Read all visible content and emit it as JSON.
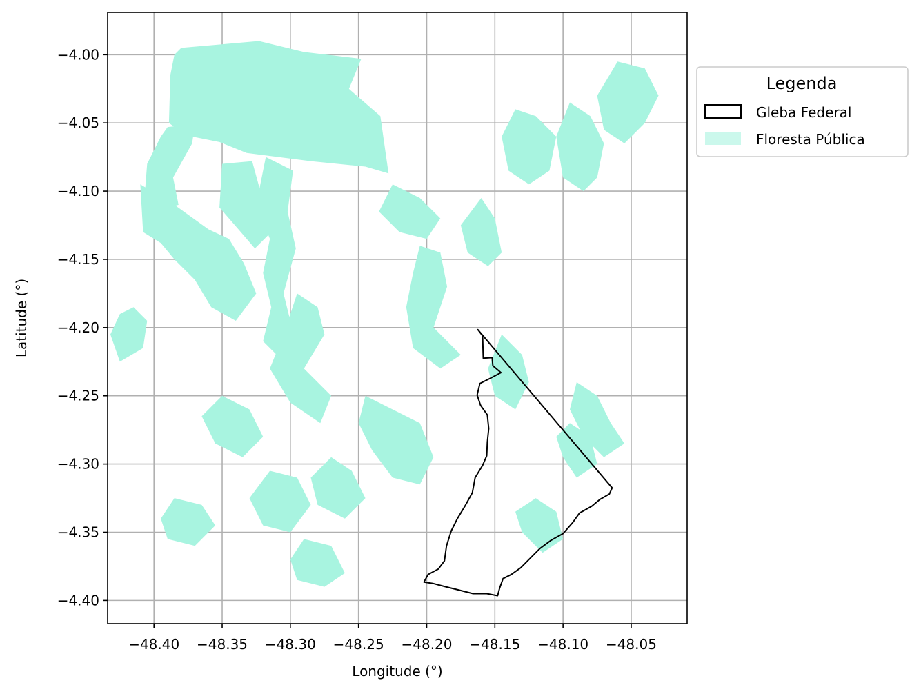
{
  "chart_data": {
    "type": "map",
    "xlabel": "Longitude (°)",
    "ylabel": "Latitude (°)",
    "xlim": [
      -48.434,
      -48.009
    ],
    "ylim": [
      -4.417,
      -3.969
    ],
    "xticks": [
      -48.4,
      -48.35,
      -48.3,
      -48.25,
      -48.2,
      -48.15,
      -48.1,
      -48.05
    ],
    "yticks": [
      -4.0,
      -4.05,
      -4.1,
      -4.15,
      -4.2,
      -4.25,
      -4.3,
      -4.35,
      -4.4
    ],
    "xtick_labels": [
      "−48.40",
      "−48.35",
      "−48.30",
      "−48.25",
      "−48.20",
      "−48.15",
      "−48.10",
      "−48.05"
    ],
    "ytick_labels": [
      "−4.00",
      "−4.05",
      "−4.10",
      "−4.15",
      "−4.20",
      "−4.25",
      "−4.30",
      "−4.35",
      "−4.40"
    ],
    "grid": true,
    "legend": {
      "title": "Legenda",
      "placement": "outside-upper-right",
      "entries": [
        {
          "label": "Gleba Federal",
          "style": "outline",
          "color": "#000000"
        },
        {
          "label": "Floresta Pública",
          "style": "fill",
          "color": "#a8f4e0"
        }
      ]
    },
    "layers": {
      "gleba_federal": {
        "name": "Gleba Federal",
        "stroke": "#000000",
        "coordinates": [
          [
            -48.1625,
            -4.2015
          ],
          [
            -48.159,
            -4.206
          ],
          [
            -48.1585,
            -4.2225
          ],
          [
            -48.152,
            -4.222
          ],
          [
            -48.1515,
            -4.228
          ],
          [
            -48.1455,
            -4.233
          ],
          [
            -48.153,
            -4.237
          ],
          [
            -48.161,
            -4.241
          ],
          [
            -48.163,
            -4.2495
          ],
          [
            -48.1605,
            -4.257
          ],
          [
            -48.1555,
            -4.264
          ],
          [
            -48.1545,
            -4.274
          ],
          [
            -48.1555,
            -4.284
          ],
          [
            -48.156,
            -4.294
          ],
          [
            -48.159,
            -4.301
          ],
          [
            -48.1645,
            -4.31
          ],
          [
            -48.1665,
            -4.321
          ],
          [
            -48.172,
            -4.331
          ],
          [
            -48.1775,
            -4.34
          ],
          [
            -48.182,
            -4.349
          ],
          [
            -48.1855,
            -4.36
          ],
          [
            -48.187,
            -4.371
          ],
          [
            -48.1915,
            -4.377
          ],
          [
            -48.199,
            -4.381
          ],
          [
            -48.202,
            -4.3865
          ],
          [
            -48.1955,
            -4.3875
          ],
          [
            -48.186,
            -4.39
          ],
          [
            -48.176,
            -4.3925
          ],
          [
            -48.166,
            -4.395
          ],
          [
            -48.156,
            -4.395
          ],
          [
            -48.148,
            -4.3965
          ],
          [
            -48.1465,
            -4.391
          ],
          [
            -48.144,
            -4.384
          ],
          [
            -48.138,
            -4.381
          ],
          [
            -48.131,
            -4.376
          ],
          [
            -48.124,
            -4.369
          ],
          [
            -48.117,
            -4.362
          ],
          [
            -48.109,
            -4.356
          ],
          [
            -48.1,
            -4.351
          ],
          [
            -48.093,
            -4.343
          ],
          [
            -48.088,
            -4.336
          ],
          [
            -48.079,
            -4.331
          ],
          [
            -48.073,
            -4.326
          ],
          [
            -48.066,
            -4.322
          ],
          [
            -48.064,
            -4.3175
          ],
          [
            -48.1625,
            -4.2015
          ]
        ]
      },
      "floresta_publica": {
        "name": "Floresta Pública",
        "fill": "#a8f4e0",
        "polygons": [
          [
            [
              -48.38,
              -3.995
            ],
            [
              -48.323,
              -3.99
            ],
            [
              -48.29,
              -3.998
            ],
            [
              -48.248,
              -4.003
            ],
            [
              -48.257,
              -4.025
            ],
            [
              -48.234,
              -4.045
            ],
            [
              -48.228,
              -4.087
            ],
            [
              -48.245,
              -4.082
            ],
            [
              -48.285,
              -4.078
            ],
            [
              -48.332,
              -4.072
            ],
            [
              -48.352,
              -4.064
            ],
            [
              -48.377,
              -4.059
            ],
            [
              -48.389,
              -4.05
            ],
            [
              -48.388,
              -4.015
            ],
            [
              -48.385,
              -4.0
            ]
          ],
          [
            [
              -48.39,
              -4.053
            ],
            [
              -48.37,
              -4.051
            ],
            [
              -48.372,
              -4.065
            ],
            [
              -48.386,
              -4.09
            ],
            [
              -48.382,
              -4.11
            ],
            [
              -48.4,
              -4.115
            ],
            [
              -48.407,
              -4.105
            ],
            [
              -48.405,
              -4.08
            ],
            [
              -48.395,
              -4.06
            ]
          ],
          [
            [
              -48.41,
              -4.095
            ],
            [
              -48.385,
              -4.11
            ],
            [
              -48.36,
              -4.128
            ],
            [
              -48.345,
              -4.135
            ],
            [
              -48.334,
              -4.153
            ],
            [
              -48.325,
              -4.175
            ],
            [
              -48.34,
              -4.195
            ],
            [
              -48.358,
              -4.185
            ],
            [
              -48.37,
              -4.165
            ],
            [
              -48.385,
              -4.15
            ],
            [
              -48.395,
              -4.138
            ],
            [
              -48.408,
              -4.13
            ]
          ],
          [
            [
              -48.35,
              -4.08
            ],
            [
              -48.328,
              -4.078
            ],
            [
              -48.322,
              -4.1
            ],
            [
              -48.314,
              -4.13
            ],
            [
              -48.326,
              -4.142
            ],
            [
              -48.338,
              -4.128
            ],
            [
              -48.352,
              -4.112
            ]
          ],
          [
            [
              -48.318,
              -4.075
            ],
            [
              -48.298,
              -4.085
            ],
            [
              -48.302,
              -4.115
            ],
            [
              -48.296,
              -4.142
            ],
            [
              -48.305,
              -4.175
            ],
            [
              -48.3,
              -4.195
            ],
            [
              -48.31,
              -4.22
            ],
            [
              -48.32,
              -4.21
            ],
            [
              -48.314,
              -4.185
            ],
            [
              -48.32,
              -4.16
            ],
            [
              -48.315,
              -4.135
            ],
            [
              -48.325,
              -4.11
            ]
          ],
          [
            [
              -48.295,
              -4.175
            ],
            [
              -48.28,
              -4.185
            ],
            [
              -48.275,
              -4.205
            ],
            [
              -48.29,
              -4.23
            ],
            [
              -48.27,
              -4.25
            ],
            [
              -48.278,
              -4.27
            ],
            [
              -48.3,
              -4.255
            ],
            [
              -48.315,
              -4.23
            ],
            [
              -48.305,
              -4.205
            ]
          ],
          [
            [
              -48.415,
              -4.185
            ],
            [
              -48.405,
              -4.195
            ],
            [
              -48.408,
              -4.215
            ],
            [
              -48.425,
              -4.225
            ],
            [
              -48.432,
              -4.205
            ],
            [
              -48.425,
              -4.19
            ]
          ],
          [
            [
              -48.35,
              -4.25
            ],
            [
              -48.33,
              -4.26
            ],
            [
              -48.32,
              -4.28
            ],
            [
              -48.335,
              -4.295
            ],
            [
              -48.355,
              -4.285
            ],
            [
              -48.365,
              -4.265
            ]
          ],
          [
            [
              -48.315,
              -4.305
            ],
            [
              -48.295,
              -4.31
            ],
            [
              -48.285,
              -4.33
            ],
            [
              -48.3,
              -4.35
            ],
            [
              -48.32,
              -4.345
            ],
            [
              -48.33,
              -4.325
            ]
          ],
          [
            [
              -48.27,
              -4.295
            ],
            [
              -48.255,
              -4.305
            ],
            [
              -48.245,
              -4.325
            ],
            [
              -48.26,
              -4.34
            ],
            [
              -48.28,
              -4.33
            ],
            [
              -48.285,
              -4.31
            ]
          ],
          [
            [
              -48.29,
              -4.355
            ],
            [
              -48.27,
              -4.36
            ],
            [
              -48.26,
              -4.38
            ],
            [
              -48.275,
              -4.39
            ],
            [
              -48.295,
              -4.385
            ],
            [
              -48.3,
              -4.37
            ]
          ],
          [
            [
              -48.385,
              -4.325
            ],
            [
              -48.365,
              -4.33
            ],
            [
              -48.355,
              -4.345
            ],
            [
              -48.37,
              -4.36
            ],
            [
              -48.39,
              -4.355
            ],
            [
              -48.395,
              -4.34
            ]
          ],
          [
            [
              -48.245,
              -4.25
            ],
            [
              -48.225,
              -4.26
            ],
            [
              -48.205,
              -4.27
            ],
            [
              -48.195,
              -4.295
            ],
            [
              -48.205,
              -4.315
            ],
            [
              -48.225,
              -4.31
            ],
            [
              -48.24,
              -4.29
            ],
            [
              -48.25,
              -4.27
            ]
          ],
          [
            [
              -48.205,
              -4.14
            ],
            [
              -48.19,
              -4.145
            ],
            [
              -48.185,
              -4.17
            ],
            [
              -48.195,
              -4.2
            ],
            [
              -48.175,
              -4.22
            ],
            [
              -48.19,
              -4.23
            ],
            [
              -48.21,
              -4.215
            ],
            [
              -48.215,
              -4.185
            ],
            [
              -48.21,
              -4.16
            ]
          ],
          [
            [
              -48.225,
              -4.095
            ],
            [
              -48.205,
              -4.105
            ],
            [
              -48.19,
              -4.12
            ],
            [
              -48.2,
              -4.135
            ],
            [
              -48.22,
              -4.13
            ],
            [
              -48.235,
              -4.115
            ]
          ],
          [
            [
              -48.16,
              -4.105
            ],
            [
              -48.15,
              -4.12
            ],
            [
              -48.145,
              -4.145
            ],
            [
              -48.155,
              -4.155
            ],
            [
              -48.17,
              -4.145
            ],
            [
              -48.175,
              -4.125
            ]
          ],
          [
            [
              -48.145,
              -4.205
            ],
            [
              -48.13,
              -4.22
            ],
            [
              -48.125,
              -4.24
            ],
            [
              -48.135,
              -4.26
            ],
            [
              -48.15,
              -4.25
            ],
            [
              -48.155,
              -4.23
            ]
          ],
          [
            [
              -48.135,
              -4.04
            ],
            [
              -48.12,
              -4.045
            ],
            [
              -48.105,
              -4.06
            ],
            [
              -48.11,
              -4.085
            ],
            [
              -48.125,
              -4.095
            ],
            [
              -48.14,
              -4.085
            ],
            [
              -48.145,
              -4.06
            ]
          ],
          [
            [
              -48.095,
              -4.035
            ],
            [
              -48.08,
              -4.045
            ],
            [
              -48.07,
              -4.065
            ],
            [
              -48.075,
              -4.09
            ],
            [
              -48.085,
              -4.1
            ],
            [
              -48.1,
              -4.09
            ],
            [
              -48.105,
              -4.06
            ]
          ],
          [
            [
              -48.06,
              -4.005
            ],
            [
              -48.04,
              -4.01
            ],
            [
              -48.03,
              -4.03
            ],
            [
              -48.04,
              -4.05
            ],
            [
              -48.055,
              -4.065
            ],
            [
              -48.07,
              -4.055
            ],
            [
              -48.075,
              -4.03
            ]
          ],
          [
            [
              -48.09,
              -4.24
            ],
            [
              -48.075,
              -4.25
            ],
            [
              -48.065,
              -4.27
            ],
            [
              -48.055,
              -4.285
            ],
            [
              -48.07,
              -4.295
            ],
            [
              -48.085,
              -4.28
            ],
            [
              -48.095,
              -4.26
            ]
          ],
          [
            [
              -48.12,
              -4.325
            ],
            [
              -48.105,
              -4.335
            ],
            [
              -48.1,
              -4.355
            ],
            [
              -48.115,
              -4.365
            ],
            [
              -48.13,
              -4.35
            ],
            [
              -48.135,
              -4.335
            ]
          ],
          [
            [
              -48.095,
              -4.27
            ],
            [
              -48.08,
              -4.28
            ],
            [
              -48.075,
              -4.3
            ],
            [
              -48.09,
              -4.31
            ],
            [
              -48.1,
              -4.295
            ],
            [
              -48.105,
              -4.28
            ]
          ]
        ]
      }
    }
  }
}
